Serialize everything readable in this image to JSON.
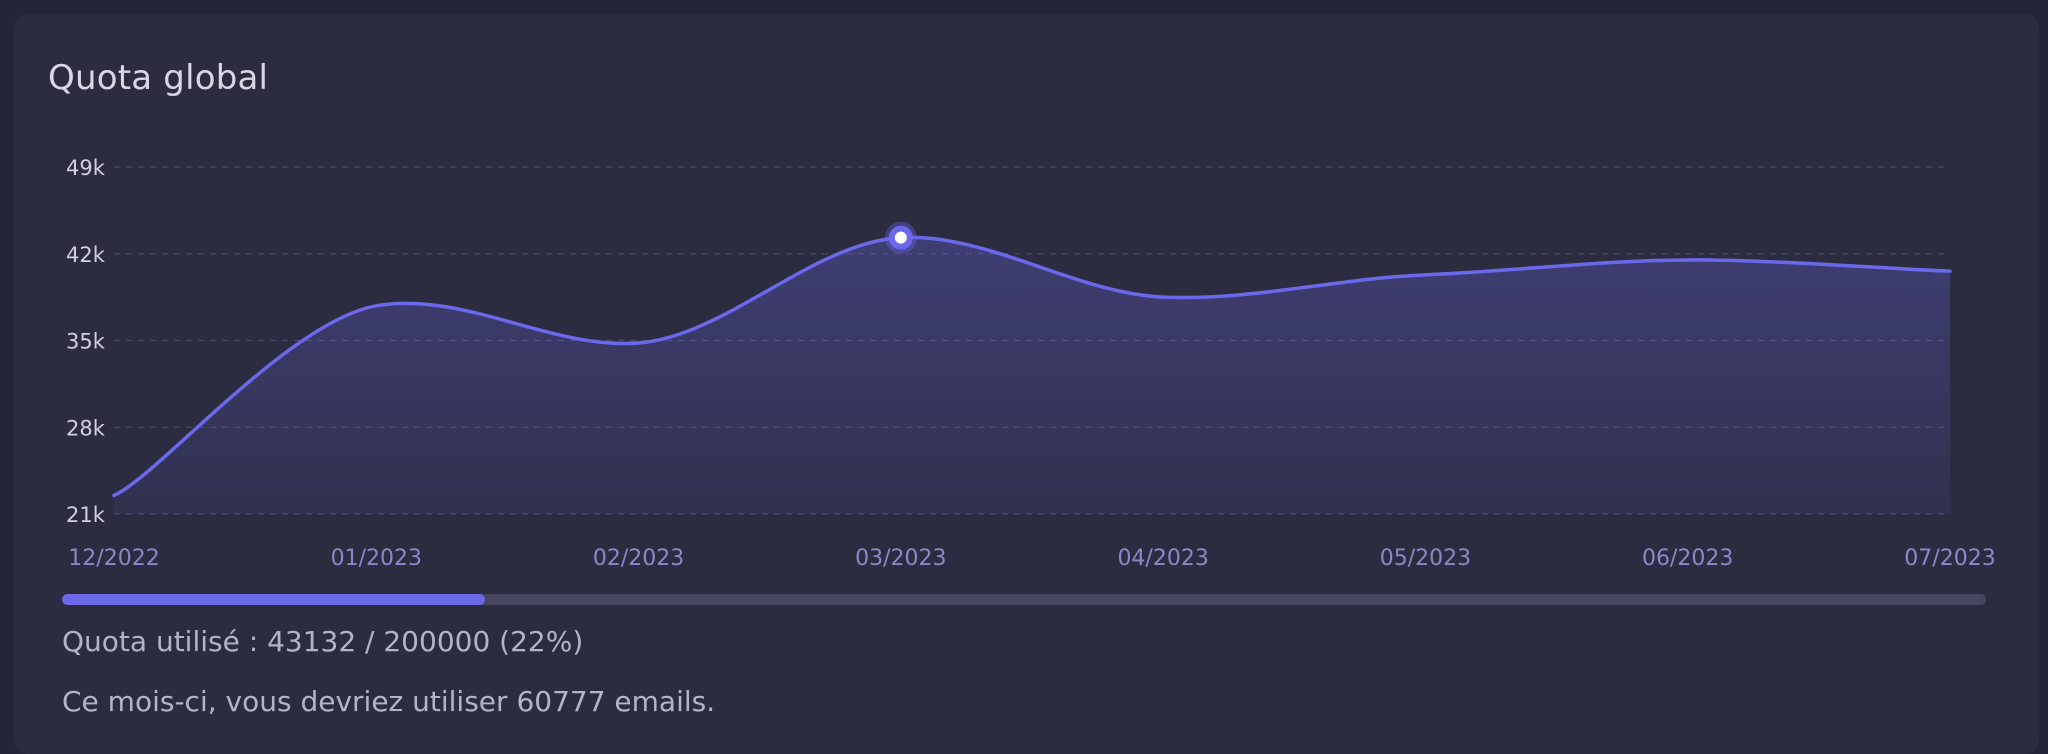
{
  "card": {
    "title": "Quota global"
  },
  "chart_data": {
    "type": "area",
    "title": "Quota global",
    "x": [
      "12/2022",
      "01/2023",
      "02/2023",
      "03/2023",
      "04/2023",
      "05/2023",
      "06/2023",
      "07/2023"
    ],
    "series": [
      {
        "values": [
          22500,
          37800,
          34800,
          43300,
          38500,
          40300,
          41500,
          40600
        ]
      }
    ],
    "y_ticks": [
      21000,
      28000,
      35000,
      42000,
      49000
    ],
    "y_tick_labels": [
      "21k",
      "28k",
      "35k",
      "42k",
      "49k"
    ],
    "ylim": [
      21000,
      49000
    ],
    "grid": true,
    "highlighted_point_index": 3,
    "colors": {
      "line": "#6b68ec",
      "area": "#6b68ec",
      "grid": "#4a4a62",
      "tick_text": "#d0d0e0",
      "x_tick_text": "#8a88c8"
    }
  },
  "progress": {
    "value": 0.22,
    "color": "#6b68ec",
    "quota_text": "Quota utilisé : 43132 / 200000 (22%)"
  },
  "forecast_text": "Ce mois-ci, vous devriez utiliser 60777 emails."
}
